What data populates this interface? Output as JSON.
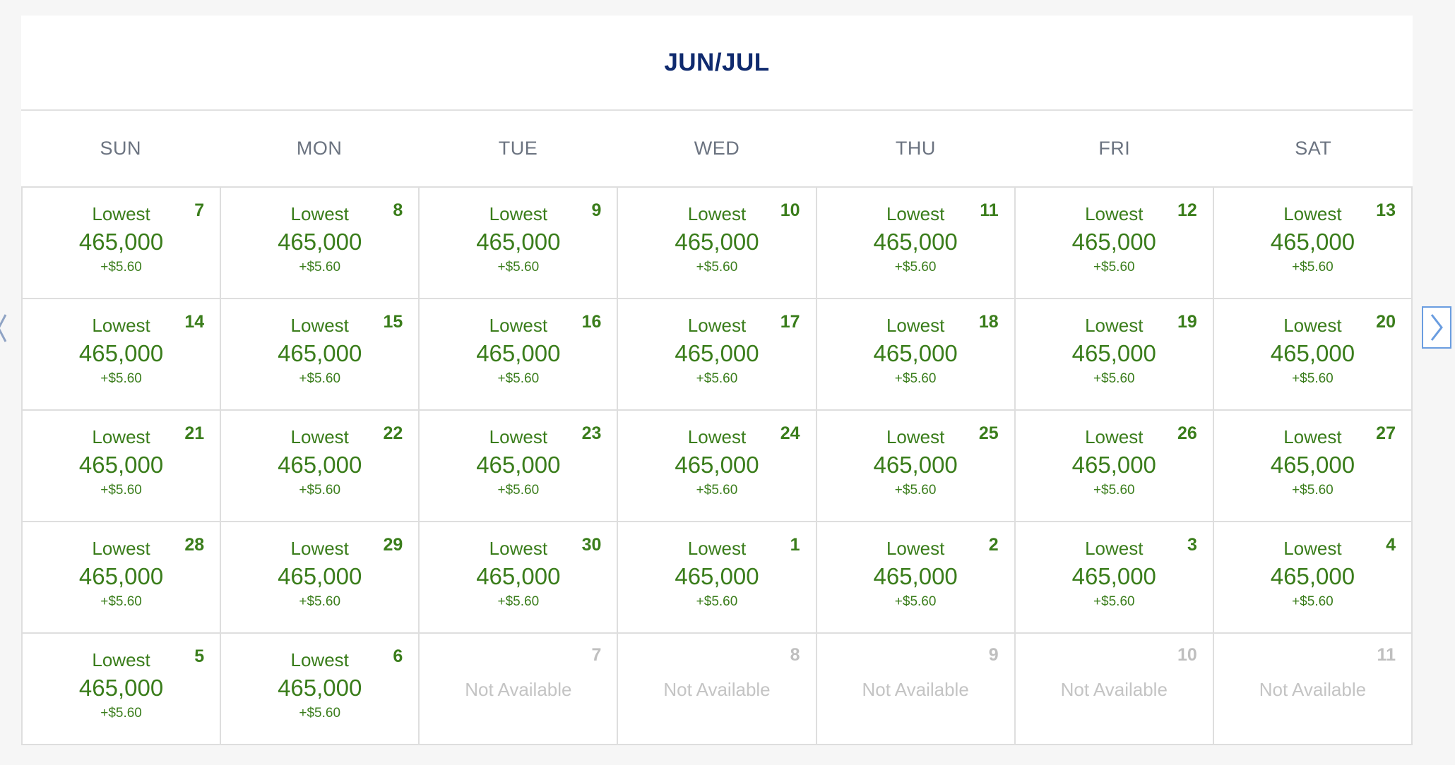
{
  "calendar": {
    "title": "JUN/JUL",
    "weekdays": [
      "SUN",
      "MON",
      "TUE",
      "WED",
      "THU",
      "FRI",
      "SAT"
    ],
    "fare_label": "Lowest",
    "unavailable_label": "Not Available",
    "days": [
      {
        "day": "7",
        "available": true,
        "miles": "465,000",
        "fee": "+$5.60"
      },
      {
        "day": "8",
        "available": true,
        "miles": "465,000",
        "fee": "+$5.60"
      },
      {
        "day": "9",
        "available": true,
        "miles": "465,000",
        "fee": "+$5.60"
      },
      {
        "day": "10",
        "available": true,
        "miles": "465,000",
        "fee": "+$5.60"
      },
      {
        "day": "11",
        "available": true,
        "miles": "465,000",
        "fee": "+$5.60"
      },
      {
        "day": "12",
        "available": true,
        "miles": "465,000",
        "fee": "+$5.60"
      },
      {
        "day": "13",
        "available": true,
        "miles": "465,000",
        "fee": "+$5.60"
      },
      {
        "day": "14",
        "available": true,
        "miles": "465,000",
        "fee": "+$5.60"
      },
      {
        "day": "15",
        "available": true,
        "miles": "465,000",
        "fee": "+$5.60"
      },
      {
        "day": "16",
        "available": true,
        "miles": "465,000",
        "fee": "+$5.60"
      },
      {
        "day": "17",
        "available": true,
        "miles": "465,000",
        "fee": "+$5.60"
      },
      {
        "day": "18",
        "available": true,
        "miles": "465,000",
        "fee": "+$5.60"
      },
      {
        "day": "19",
        "available": true,
        "miles": "465,000",
        "fee": "+$5.60"
      },
      {
        "day": "20",
        "available": true,
        "miles": "465,000",
        "fee": "+$5.60"
      },
      {
        "day": "21",
        "available": true,
        "miles": "465,000",
        "fee": "+$5.60"
      },
      {
        "day": "22",
        "available": true,
        "miles": "465,000",
        "fee": "+$5.60"
      },
      {
        "day": "23",
        "available": true,
        "miles": "465,000",
        "fee": "+$5.60"
      },
      {
        "day": "24",
        "available": true,
        "miles": "465,000",
        "fee": "+$5.60"
      },
      {
        "day": "25",
        "available": true,
        "miles": "465,000",
        "fee": "+$5.60"
      },
      {
        "day": "26",
        "available": true,
        "miles": "465,000",
        "fee": "+$5.60"
      },
      {
        "day": "27",
        "available": true,
        "miles": "465,000",
        "fee": "+$5.60"
      },
      {
        "day": "28",
        "available": true,
        "miles": "465,000",
        "fee": "+$5.60"
      },
      {
        "day": "29",
        "available": true,
        "miles": "465,000",
        "fee": "+$5.60"
      },
      {
        "day": "30",
        "available": true,
        "miles": "465,000",
        "fee": "+$5.60"
      },
      {
        "day": "1",
        "available": true,
        "miles": "465,000",
        "fee": "+$5.60"
      },
      {
        "day": "2",
        "available": true,
        "miles": "465,000",
        "fee": "+$5.60"
      },
      {
        "day": "3",
        "available": true,
        "miles": "465,000",
        "fee": "+$5.60"
      },
      {
        "day": "4",
        "available": true,
        "miles": "465,000",
        "fee": "+$5.60"
      },
      {
        "day": "5",
        "available": true,
        "miles": "465,000",
        "fee": "+$5.60"
      },
      {
        "day": "6",
        "available": true,
        "miles": "465,000",
        "fee": "+$5.60"
      },
      {
        "day": "7",
        "available": false
      },
      {
        "day": "8",
        "available": false
      },
      {
        "day": "9",
        "available": false
      },
      {
        "day": "10",
        "available": false
      },
      {
        "day": "11",
        "available": false
      }
    ]
  },
  "nav": {
    "prev_icon": "chevron-left-icon",
    "next_icon": "chevron-right-icon"
  },
  "colors": {
    "title": "#0f2a6e",
    "fare_green": "#3a7d1b",
    "unavailable_gray": "#c4c4c4",
    "next_border": "#6a9de0"
  }
}
